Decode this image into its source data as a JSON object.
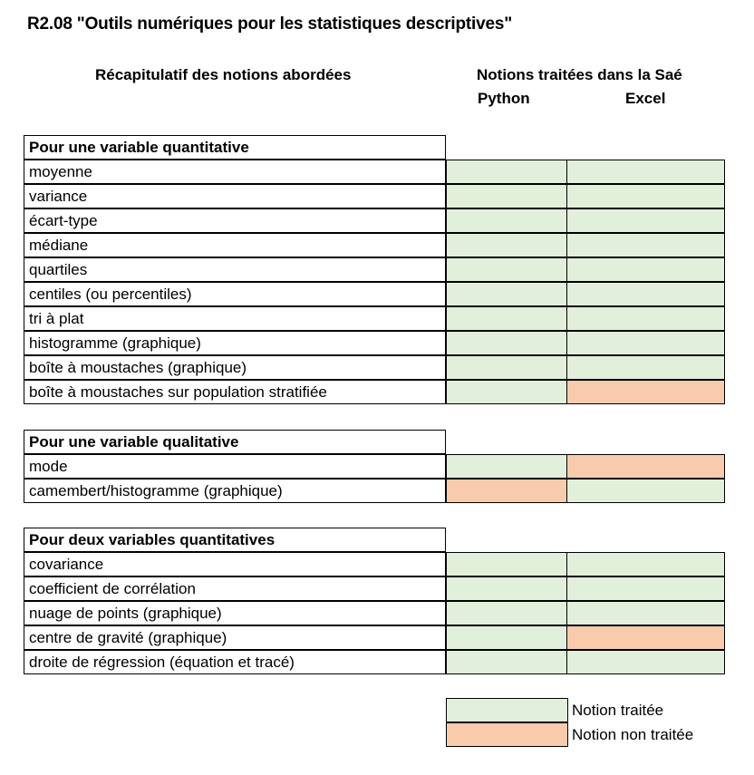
{
  "title": "R2.08 \"Outils numériques pour les statistiques descriptives\"",
  "headers": {
    "recap": "Récapitulatif des notions abordées",
    "notions": "Notions traitées dans la Saé",
    "python": "Python",
    "excel": "Excel"
  },
  "colors": {
    "treated": "#e2efda",
    "not_treated": "#f8cbad"
  },
  "sections": [
    {
      "heading": "Pour une variable quantitative",
      "rows": [
        {
          "label": "moyenne",
          "python": "treated",
          "excel": "treated"
        },
        {
          "label": "variance",
          "python": "treated",
          "excel": "treated"
        },
        {
          "label": "écart-type",
          "python": "treated",
          "excel": "treated"
        },
        {
          "label": "médiane",
          "python": "treated",
          "excel": "treated"
        },
        {
          "label": "quartiles",
          "python": "treated",
          "excel": "treated"
        },
        {
          "label": "centiles (ou percentiles)",
          "python": "treated",
          "excel": "treated"
        },
        {
          "label": "tri à plat",
          "python": "treated",
          "excel": "treated"
        },
        {
          "label": "histogramme (graphique)",
          "python": "treated",
          "excel": "treated"
        },
        {
          "label": "boîte à moustaches (graphique)",
          "python": "treated",
          "excel": "treated"
        },
        {
          "label": "boîte à moustaches sur population stratifiée",
          "python": "treated",
          "excel": "not_treated"
        }
      ]
    },
    {
      "heading": "Pour une variable qualitative",
      "rows": [
        {
          "label": "mode",
          "python": "treated",
          "excel": "not_treated"
        },
        {
          "label": "camembert/histogramme (graphique)",
          "python": "not_treated",
          "excel": "treated"
        }
      ]
    },
    {
      "heading": "Pour deux variables quantitatives",
      "rows": [
        {
          "label": "covariance",
          "python": "treated",
          "excel": "treated"
        },
        {
          "label": "coefficient de corrélation",
          "python": "treated",
          "excel": "treated"
        },
        {
          "label": "nuage de points  (graphique)",
          "python": "treated",
          "excel": "treated"
        },
        {
          "label": "centre de gravité  (graphique)",
          "python": "treated",
          "excel": "not_treated"
        },
        {
          "label": "droite de régression (équation et tracé)",
          "python": "treated",
          "excel": "treated"
        }
      ]
    }
  ],
  "legend": {
    "treated": "Notion traitée",
    "not_treated": "Notion non traitée"
  }
}
